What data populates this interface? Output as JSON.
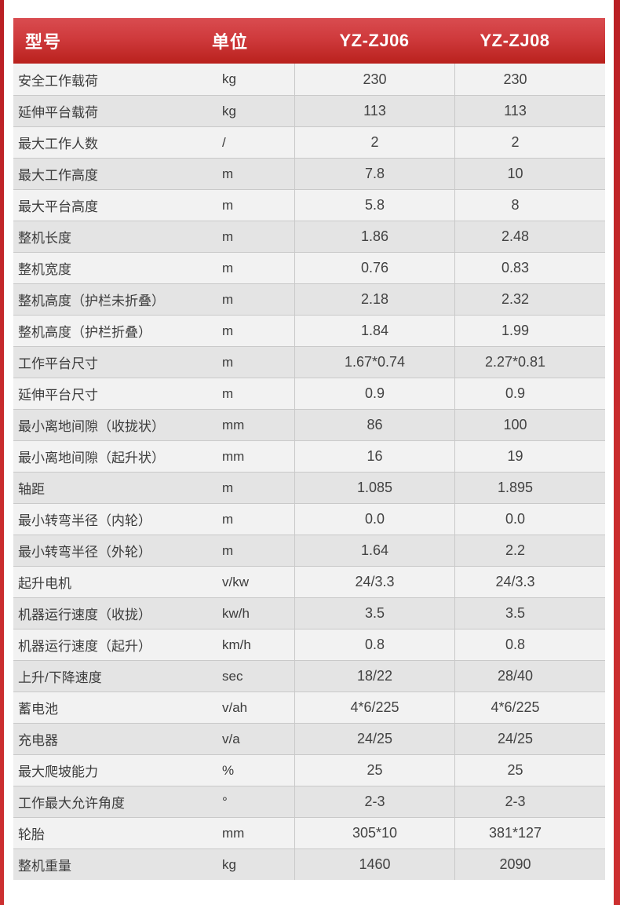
{
  "colors": {
    "edge_stripe": "#c1272d",
    "header_gradient_top": "#d94c50",
    "header_gradient_bottom": "#b9211d",
    "row_light": "#f2f2f2",
    "row_dark": "#e4e4e4",
    "row_border": "#c9c9c9",
    "header_text": "#ffffff",
    "body_text": "#3c3c3c"
  },
  "table": {
    "headers": {
      "model": "型号",
      "unit": "单位",
      "col1": "YZ-ZJ06",
      "col2": "YZ-ZJ08"
    },
    "rows": [
      {
        "label": "安全工作载荷",
        "unit": "kg",
        "v1": "230",
        "v2": "230"
      },
      {
        "label": "延伸平台载荷",
        "unit": "kg",
        "v1": "113",
        "v2": "113"
      },
      {
        "label": "最大工作人数",
        "unit": "/",
        "v1": "2",
        "v2": "2"
      },
      {
        "label": "最大工作高度",
        "unit": "m",
        "v1": "7.8",
        "v2": "10"
      },
      {
        "label": "最大平台高度",
        "unit": "m",
        "v1": "5.8",
        "v2": "8"
      },
      {
        "label": "整机长度",
        "unit": "m",
        "v1": "1.86",
        "v2": "2.48"
      },
      {
        "label": "整机宽度",
        "unit": "m",
        "v1": "0.76",
        "v2": "0.83"
      },
      {
        "label": "整机高度（护栏未折叠）",
        "unit": "m",
        "v1": "2.18",
        "v2": "2.32"
      },
      {
        "label": "整机高度（护栏折叠）",
        "unit": "m",
        "v1": "1.84",
        "v2": "1.99"
      },
      {
        "label": "工作平台尺寸",
        "unit": "m",
        "v1": "1.67*0.74",
        "v2": "2.27*0.81"
      },
      {
        "label": "延伸平台尺寸",
        "unit": "m",
        "v1": "0.9",
        "v2": "0.9"
      },
      {
        "label": "最小离地间隙（收拢状）",
        "unit": "mm",
        "v1": "86",
        "v2": "100"
      },
      {
        "label": "最小离地间隙（起升状）",
        "unit": "mm",
        "v1": "16",
        "v2": "19"
      },
      {
        "label": "轴距",
        "unit": "m",
        "v1": "1.085",
        "v2": "1.895"
      },
      {
        "label": "最小转弯半径（内轮）",
        "unit": "m",
        "v1": "0.0",
        "v2": "0.0"
      },
      {
        "label": "最小转弯半径（外轮）",
        "unit": "m",
        "v1": "1.64",
        "v2": "2.2"
      },
      {
        "label": "起升电机",
        "unit": "v/kw",
        "v1": "24/3.3",
        "v2": "24/3.3"
      },
      {
        "label": "机器运行速度（收拢）",
        "unit": "kw/h",
        "v1": "3.5",
        "v2": "3.5"
      },
      {
        "label": "机器运行速度（起升）",
        "unit": "km/h",
        "v1": "0.8",
        "v2": "0.8"
      },
      {
        "label": "上升/下降速度",
        "unit": "sec",
        "v1": "18/22",
        "v2": "28/40"
      },
      {
        "label": "蓄电池",
        "unit": "v/ah",
        "v1": "4*6/225",
        "v2": "4*6/225"
      },
      {
        "label": "充电器",
        "unit": "v/a",
        "v1": "24/25",
        "v2": "24/25"
      },
      {
        "label": "最大爬坡能力",
        "unit": "%",
        "v1": "25",
        "v2": "25"
      },
      {
        "label": "工作最大允许角度",
        "unit": "°",
        "v1": "2-3",
        "v2": "2-3"
      },
      {
        "label": "轮胎",
        "unit": "mm",
        "v1": "305*10",
        "v2": "381*127"
      },
      {
        "label": "整机重量",
        "unit": "kg",
        "v1": "1460",
        "v2": "2090"
      }
    ]
  }
}
